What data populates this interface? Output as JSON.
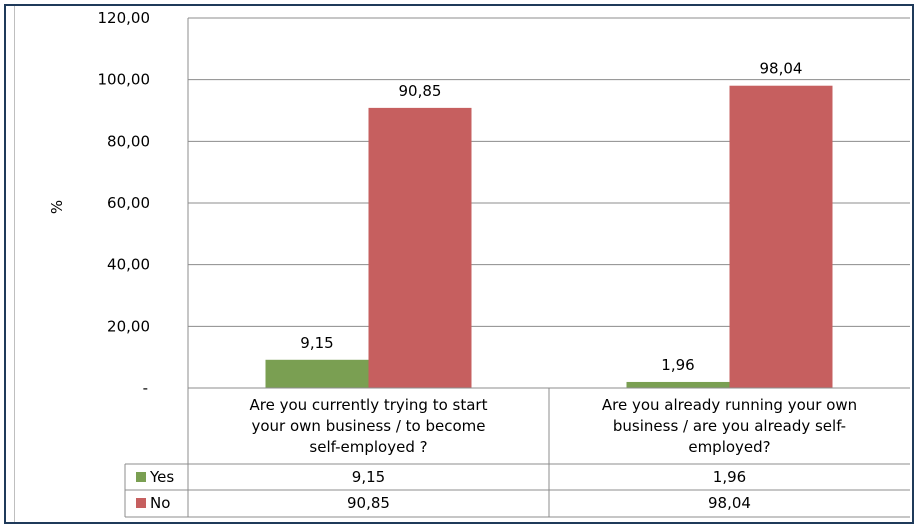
{
  "chart_data": {
    "type": "bar",
    "title": "",
    "xlabel": "",
    "ylabel": "%",
    "ylim": [
      0,
      120
    ],
    "yticks": [
      0,
      20,
      40,
      60,
      80,
      100,
      120
    ],
    "ytick_labels": [
      "-",
      "20,00",
      "40,00",
      "60,00",
      "80,00",
      "100,00",
      "120,00"
    ],
    "grid": true,
    "legend": "data-table",
    "categories": [
      [
        "Are you currently trying to start",
        "your own business / to become",
        "self-employed ?"
      ],
      [
        "Are you already running your own",
        "business / are you already self-",
        "employed?"
      ]
    ],
    "series": [
      {
        "name": "Yes",
        "color": "#7a9f52",
        "values": [
          9.15,
          1.96
        ],
        "labels": [
          "9,15",
          "1,96"
        ]
      },
      {
        "name": "No",
        "color": "#c65f5f",
        "values": [
          90.85,
          98.04
        ],
        "labels": [
          "90,85",
          "98,04"
        ]
      }
    ]
  }
}
